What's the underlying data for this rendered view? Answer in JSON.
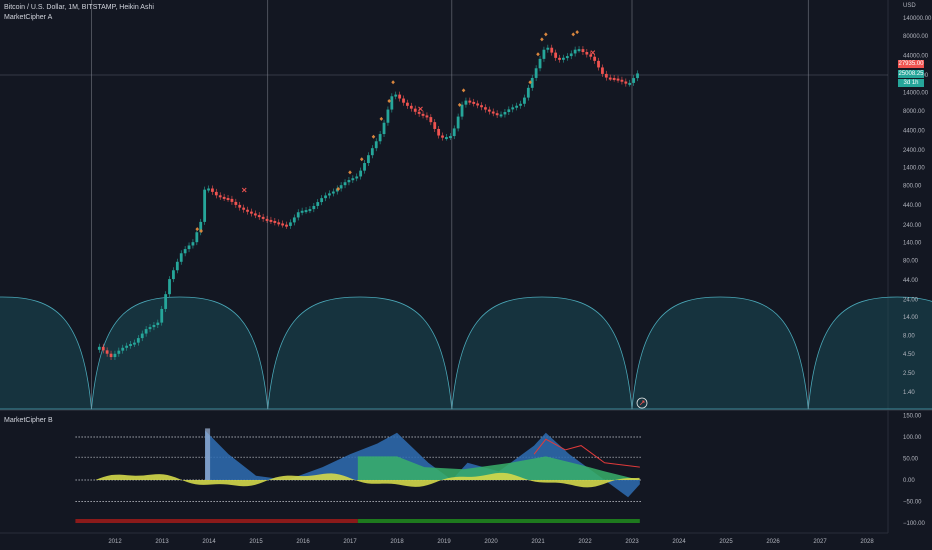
{
  "header": {
    "symbol_title": "Bitcoin / U.S. Dollar, 1M, BITSTAMP, Heikin Ashi",
    "indicator_a": "MarketCipher A",
    "indicator_b": "MarketCipher B",
    "currency": "USD"
  },
  "price_axis": {
    "ticks": [
      "140000.00",
      "80000.00",
      "44000.00",
      "24000.00",
      "14000.00",
      "8000.00",
      "4400.00",
      "2400.00",
      "1400.00",
      "800.00",
      "440.00",
      "240.00",
      "140.00",
      "80.00",
      "44.00",
      "24.00",
      "14.00",
      "8.00",
      "4.50",
      "2.50",
      "1.40"
    ],
    "current_price": "27935.00",
    "open_price": "25008.25",
    "percent_change": "3d 1h"
  },
  "osc_axis": {
    "ticks": [
      "150.00",
      "100.00",
      "50.00",
      "0.00",
      "−50.00",
      "−100.00"
    ]
  },
  "time_axis": {
    "years": [
      "2012",
      "2013",
      "2014",
      "2015",
      "2016",
      "2017",
      "2018",
      "2019",
      "2020",
      "2021",
      "2022",
      "2023",
      "2024",
      "2025",
      "2026",
      "2027",
      "2028"
    ]
  },
  "chart_data": {
    "type": "candlestick",
    "series_name": "Bitcoin / U.S. Dollar",
    "timeframe": "1M",
    "scale": "log",
    "ylim": [
      1,
      170000
    ],
    "price_path": [
      [
        "2011-09",
        6
      ],
      [
        "2011-12",
        4
      ],
      [
        "2012-03",
        5
      ],
      [
        "2012-06",
        6
      ],
      [
        "2012-09",
        10
      ],
      [
        "2012-12",
        13
      ],
      [
        "2013-03",
        50
      ],
      [
        "2013-06",
        100
      ],
      [
        "2013-09",
        130
      ],
      [
        "2013-11",
        250
      ],
      [
        "2013-12",
        750
      ],
      [
        "2014-03",
        600
      ],
      [
        "2014-06",
        580
      ],
      [
        "2014-09",
        430
      ],
      [
        "2014-12",
        330
      ],
      [
        "2015-03",
        260
      ],
      [
        "2015-06",
        240
      ],
      [
        "2015-09",
        235
      ],
      [
        "2015-12",
        400
      ],
      [
        "2016-03",
        420
      ],
      [
        "2016-06",
        550
      ],
      [
        "2016-09",
        620
      ],
      [
        "2016-12",
        850
      ],
      [
        "2017-03",
        1100
      ],
      [
        "2017-06",
        2400
      ],
      [
        "2017-09",
        4500
      ],
      [
        "2017-12",
        14000
      ],
      [
        "2018-03",
        9000
      ],
      [
        "2018-06",
        7000
      ],
      [
        "2018-09",
        6600
      ],
      [
        "2018-12",
        3800
      ],
      [
        "2019-03",
        4000
      ],
      [
        "2019-06",
        11000
      ],
      [
        "2019-09",
        9000
      ],
      [
        "2019-12",
        7500
      ],
      [
        "2020-03",
        7000
      ],
      [
        "2020-06",
        9500
      ],
      [
        "2020-09",
        11000
      ],
      [
        "2020-12",
        25000
      ],
      [
        "2021-03",
        55000
      ],
      [
        "2021-06",
        35000
      ],
      [
        "2021-09",
        45000
      ],
      [
        "2021-11",
        60000
      ],
      [
        "2022-03",
        44000
      ],
      [
        "2022-06",
        22000
      ],
      [
        "2022-09",
        19500
      ],
      [
        "2022-12",
        16500
      ],
      [
        "2023-03",
        27935
      ]
    ],
    "cycle_lines": [
      "2011-07",
      "2015-04",
      "2019-03",
      "2023-01",
      "2026-10"
    ],
    "oscillator": {
      "levels": [
        100,
        53,
        0,
        -50
      ],
      "ylim": [
        -120,
        160
      ]
    }
  },
  "colors": {
    "background": "#131722",
    "up": "#26a69a",
    "down": "#ef5350",
    "cycle": "#4aa8b8",
    "wave_blue": "#2f6db3",
    "wave_green": "#38b06a",
    "wave_yellow": "#d4d84a",
    "bar_red": "#8b1a1a",
    "bar_green": "#1e7a1e"
  }
}
